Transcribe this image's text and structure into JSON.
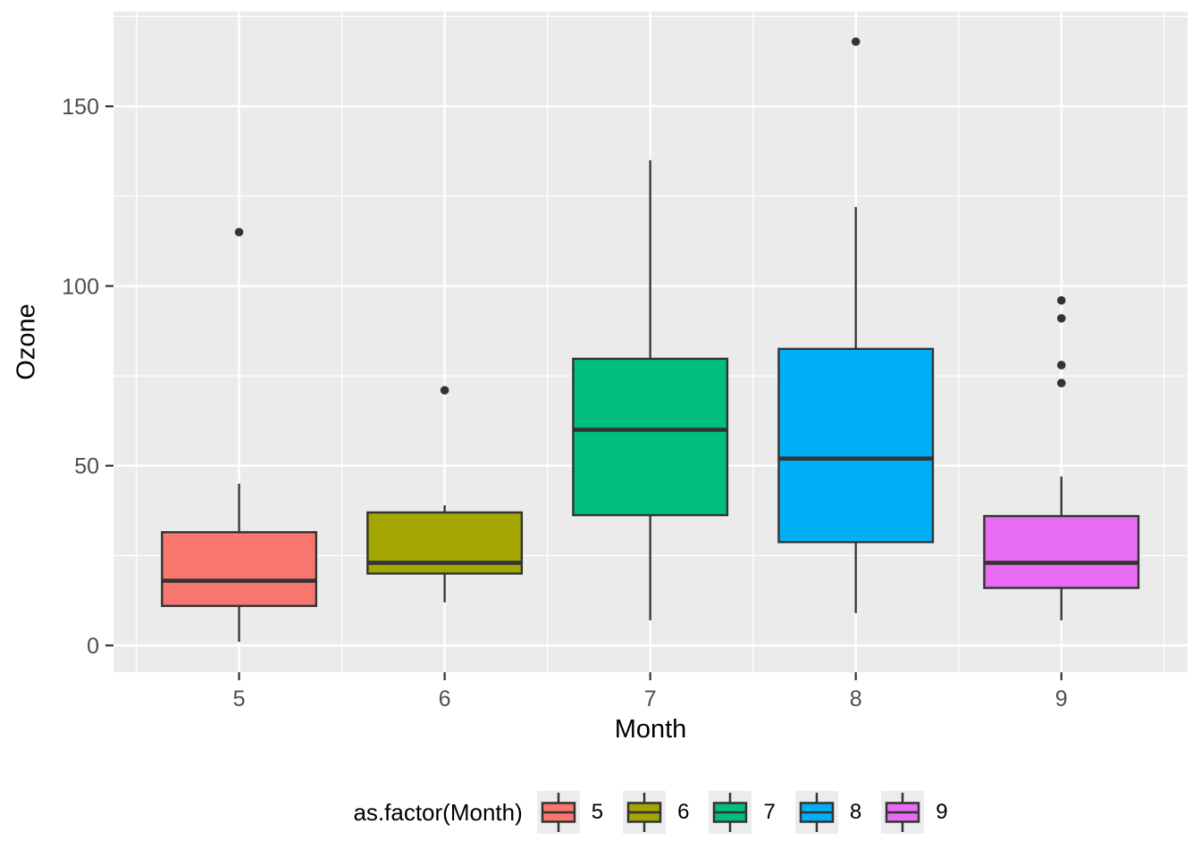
{
  "chart_data": {
    "type": "boxplot",
    "title": "",
    "xlabel": "Month",
    "ylabel": "Ozone",
    "categories": [
      "5",
      "6",
      "7",
      "8",
      "9"
    ],
    "series": [
      {
        "label": "5",
        "fill": "#F8766D",
        "x": 5,
        "whisker_low": 1,
        "q1": 11,
        "median": 18,
        "q3": 31.5,
        "whisker_high": 45,
        "outliers": [
          115
        ]
      },
      {
        "label": "6",
        "fill": "#A3A500",
        "x": 6,
        "whisker_low": 12,
        "q1": 20,
        "median": 23,
        "q3": 37,
        "whisker_high": 39,
        "outliers": [
          71
        ]
      },
      {
        "label": "7",
        "fill": "#00BF7D",
        "x": 7,
        "whisker_low": 7,
        "q1": 36.25,
        "median": 60,
        "q3": 79.75,
        "whisker_high": 135,
        "outliers": []
      },
      {
        "label": "8",
        "fill": "#00B0F6",
        "x": 8,
        "whisker_low": 9,
        "q1": 28.75,
        "median": 52,
        "q3": 82.5,
        "whisker_high": 122,
        "outliers": [
          168
        ]
      },
      {
        "label": "9",
        "fill": "#E76BF3",
        "x": 9,
        "whisker_low": 7,
        "q1": 16,
        "median": 23,
        "q3": 36,
        "whisker_high": 47,
        "outliers": [
          73,
          78,
          91,
          96
        ]
      }
    ],
    "box_width": 0.75,
    "x_axis": {
      "ticks": [
        "5",
        "6",
        "7",
        "8",
        "9"
      ],
      "tick_values": [
        5,
        6,
        7,
        8,
        9
      ],
      "minor_values": [
        4.5,
        5.5,
        6.5,
        7.5,
        8.5,
        9.5
      ],
      "lim": [
        4.389,
        9.614
      ]
    },
    "y_axis": {
      "ticks": [
        "0",
        "50",
        "100",
        "150"
      ],
      "tick_values": [
        0,
        50,
        100,
        150
      ],
      "minor_values": [
        25,
        75,
        125,
        175
      ],
      "lim": [
        -7.45,
        176.35
      ]
    },
    "legend": {
      "title": "as.factor(Month)",
      "entries": [
        {
          "label": "5",
          "color": "#F8766D"
        },
        {
          "label": "6",
          "color": "#A3A500"
        },
        {
          "label": "7",
          "color": "#00BF7D"
        },
        {
          "label": "8",
          "color": "#00B0F6"
        },
        {
          "label": "9",
          "color": "#E76BF3"
        }
      ]
    },
    "colors": {
      "panel_bg": "#EBEBEB",
      "grid": "#FFFFFF",
      "box_stroke": "#333333",
      "outlier": "#333333",
      "tick_label": "#4D4D4D",
      "axis_title": "#000000",
      "legend_key_bg": "#ECECEC"
    },
    "legend_position": "bottom",
    "grid": true
  }
}
